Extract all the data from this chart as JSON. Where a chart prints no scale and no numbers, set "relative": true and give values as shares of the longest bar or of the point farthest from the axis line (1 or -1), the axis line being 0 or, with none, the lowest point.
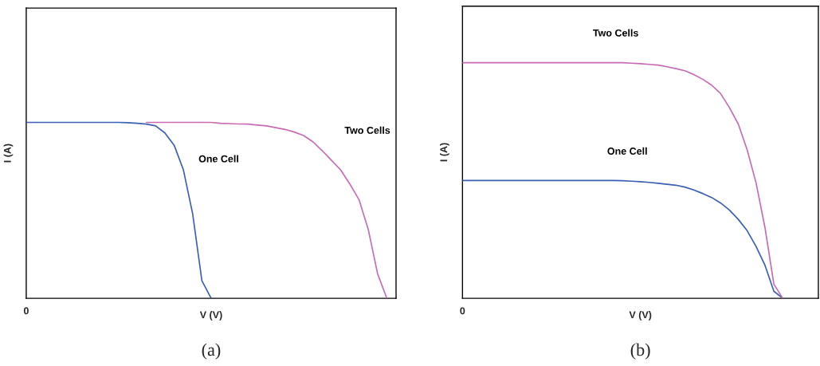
{
  "chart_data": [
    {
      "type": "line",
      "relative": true,
      "xlabel": "V (V)",
      "ylabel": "I (A)",
      "legend": false,
      "annotations": [
        "0",
        "(a)"
      ],
      "categories": [
        null,
        null,
        null,
        null,
        null,
        null,
        null,
        null,
        null,
        null,
        null,
        null,
        null,
        null,
        null,
        null,
        null,
        null,
        null,
        null,
        null,
        null,
        null,
        null,
        null,
        null,
        null,
        null,
        null,
        null,
        null,
        null,
        null,
        null,
        null,
        null,
        null,
        null,
        null,
        null,
        null
      ],
      "series": [
        {
          "name": "One Cell",
          "color": "#3a5fb5",
          "values": [
            1.0,
            1.0,
            1.0,
            1.0,
            1.0,
            1.0,
            1.0,
            1.0,
            1.0,
            1.0,
            1.0,
            0.998,
            0.995,
            0.99,
            0.98,
            0.94,
            0.87,
            0.73,
            0.48,
            0.1,
            0,
            null,
            null,
            null,
            null,
            null,
            null,
            null,
            null,
            null,
            null,
            null,
            null,
            null,
            null,
            null,
            null,
            null,
            null,
            null,
            null
          ]
        },
        {
          "name": "Two Cells",
          "color": "#c86ab4",
          "values": [
            null,
            null,
            null,
            null,
            null,
            null,
            null,
            null,
            null,
            null,
            null,
            null,
            null,
            1.0,
            1.0,
            1.0,
            1.0,
            1.0,
            1.0,
            1.0,
            1.0,
            0.995,
            0.993,
            0.991,
            0.99,
            0.985,
            0.98,
            0.97,
            0.96,
            0.945,
            0.925,
            0.89,
            0.84,
            0.785,
            0.73,
            0.65,
            0.56,
            0.39,
            0.14,
            0,
            null
          ]
        }
      ]
    },
    {
      "type": "line",
      "relative": true,
      "xlabel": "V (V)",
      "ylabel": "I (A)",
      "legend": false,
      "annotations": [
        "0",
        "(b)"
      ],
      "categories": [
        null,
        null,
        null,
        null,
        null,
        null,
        null,
        null,
        null,
        null,
        null,
        null,
        null,
        null,
        null,
        null,
        null,
        null,
        null,
        null,
        null,
        null,
        null,
        null,
        null,
        null,
        null,
        null,
        null,
        null,
        null,
        null,
        null,
        null,
        null,
        null,
        null,
        null,
        null,
        null,
        null
      ],
      "series": [
        {
          "name": "Two Cells",
          "color": "#c86ab4",
          "values": [
            1.0,
            1.0,
            1.0,
            1.0,
            1.0,
            1.0,
            1.0,
            1.0,
            1.0,
            1.0,
            1.0,
            1.0,
            1.0,
            1.0,
            1.0,
            1.0,
            1.0,
            1.0,
            1.0,
            0.998,
            0.996,
            0.993,
            0.99,
            0.983,
            0.975,
            0.966,
            0.95,
            0.93,
            0.905,
            0.87,
            0.81,
            0.74,
            0.63,
            0.49,
            0.3,
            0.06,
            0,
            null,
            null,
            null,
            null
          ]
        },
        {
          "name": "One Cell",
          "color": "#3a5fb5",
          "values": [
            0.5,
            0.5,
            0.5,
            0.5,
            0.5,
            0.5,
            0.5,
            0.5,
            0.5,
            0.5,
            0.5,
            0.5,
            0.5,
            0.5,
            0.5,
            0.5,
            0.5,
            0.5,
            0.499,
            0.497,
            0.495,
            0.492,
            0.488,
            0.484,
            0.48,
            0.472,
            0.46,
            0.445,
            0.428,
            0.405,
            0.375,
            0.335,
            0.287,
            0.22,
            0.14,
            0.03,
            0,
            null,
            null,
            null,
            null
          ]
        }
      ]
    }
  ]
}
